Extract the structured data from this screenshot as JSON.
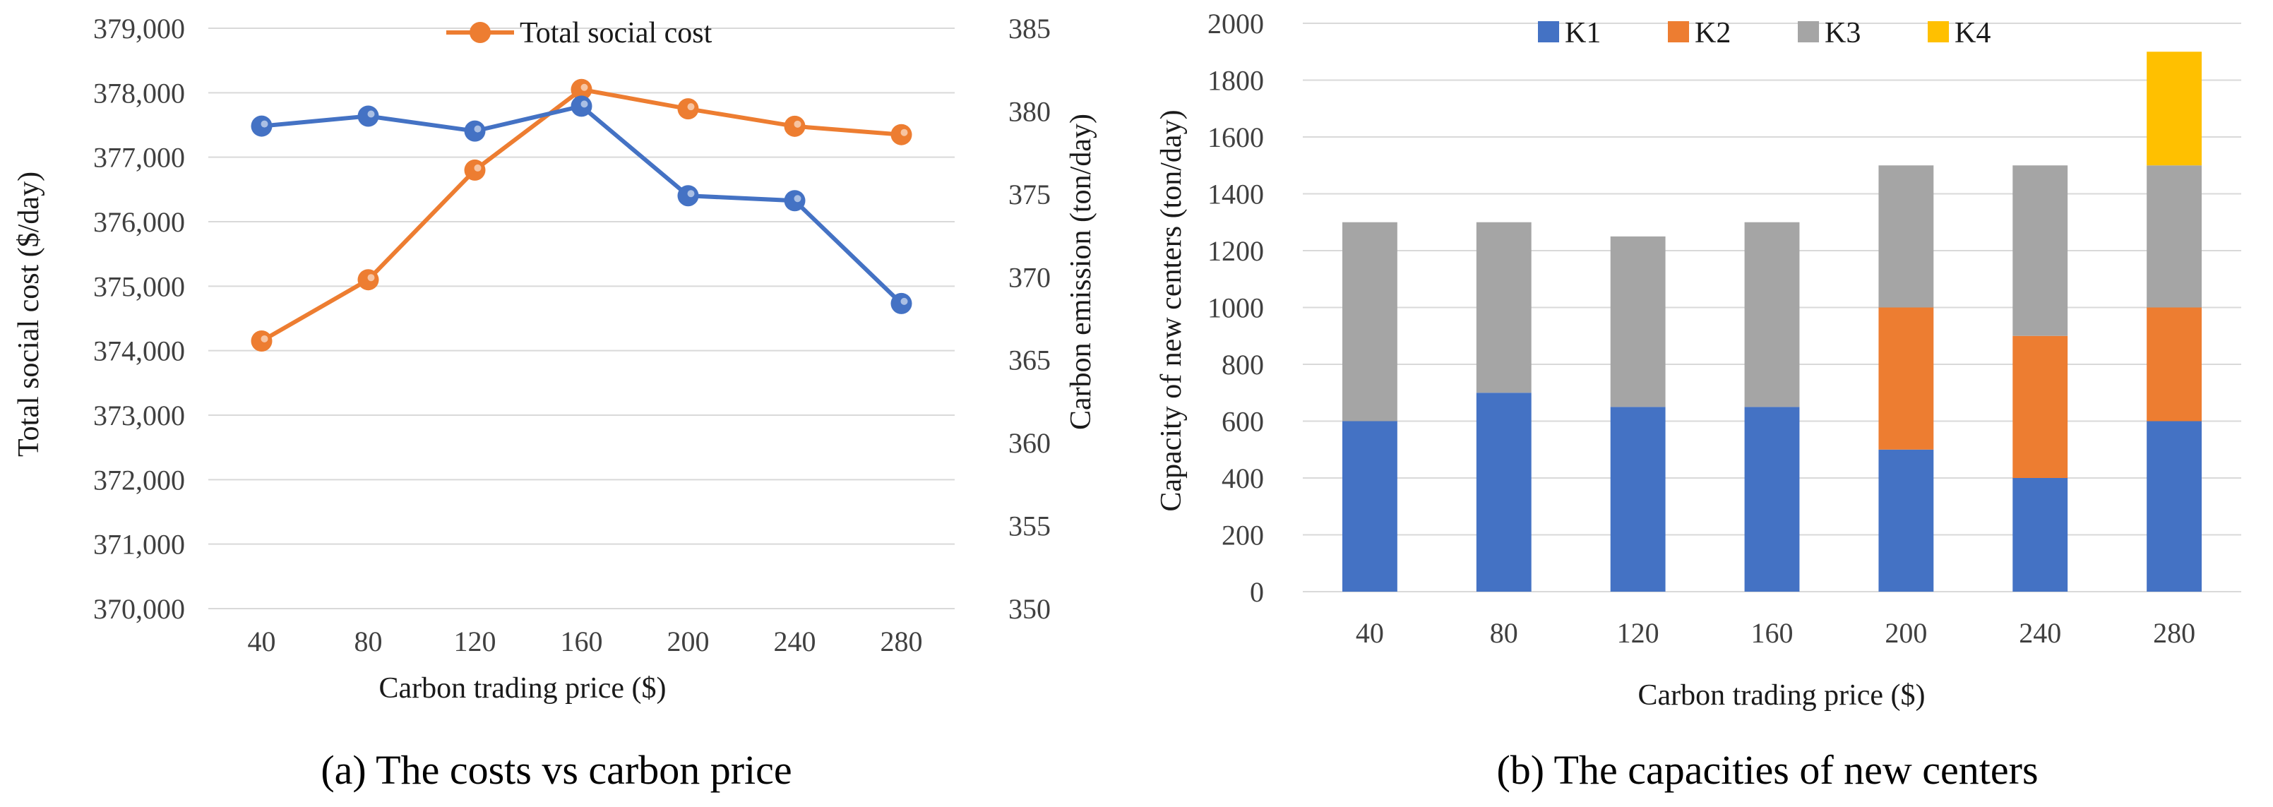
{
  "chart_data": [
    {
      "type": "line",
      "title": "",
      "caption": "(a) The costs vs carbon price",
      "x": [
        "40",
        "80",
        "120",
        "160",
        "200",
        "240",
        "280"
      ],
      "xlabel": "Carbon trading price ($)",
      "ylabel_left": "Total social cost ($/day)",
      "ylabel_right": "Carbon emission (ton/day)",
      "ylim_left": [
        370000,
        379000
      ],
      "ylim_right": [
        350,
        385
      ],
      "yticks_left": [
        "370,000",
        "371,000",
        "372,000",
        "373,000",
        "374,000",
        "375,000",
        "376,000",
        "377,000",
        "378,000",
        "379,000"
      ],
      "yticks_right": [
        "350",
        "355",
        "360",
        "365",
        "370",
        "375",
        "380",
        "385"
      ],
      "series": [
        {
          "name": "Total social cost",
          "axis": "left",
          "color": "#ED7D31",
          "in_legend": true,
          "values": [
            374150,
            375100,
            376800,
            378050,
            377750,
            377480,
            377350
          ]
        },
        {
          "name": "Carbon emission",
          "axis": "right",
          "color": "#4472C4",
          "in_legend": false,
          "values": [
            379.1,
            379.7,
            378.8,
            380.3,
            374.9,
            374.6,
            368.4
          ]
        }
      ],
      "legend": "top"
    },
    {
      "type": "bar",
      "stacked": true,
      "title": "",
      "caption": "(b) The capacities of new centers",
      "categories": [
        "40",
        "80",
        "120",
        "160",
        "200",
        "240",
        "280"
      ],
      "xlabel": "Carbon trading price ($)",
      "ylabel": "Capacity of new centers (ton/day)",
      "ylim": [
        0,
        2000
      ],
      "yticks": [
        "0",
        "200",
        "400",
        "600",
        "800",
        "1000",
        "1200",
        "1400",
        "1600",
        "1800",
        "2000"
      ],
      "series": [
        {
          "name": "K1",
          "color": "#4472C4",
          "values": [
            600,
            700,
            650,
            650,
            500,
            400,
            600
          ]
        },
        {
          "name": "K2",
          "color": "#ED7D31",
          "values": [
            0,
            0,
            0,
            0,
            500,
            500,
            400
          ]
        },
        {
          "name": "K3",
          "color": "#A5A5A5",
          "values": [
            700,
            600,
            600,
            650,
            500,
            600,
            500
          ]
        },
        {
          "name": "K4",
          "color": "#FFC000",
          "values": [
            0,
            0,
            0,
            0,
            0,
            0,
            400
          ]
        }
      ],
      "legend": "top"
    }
  ]
}
